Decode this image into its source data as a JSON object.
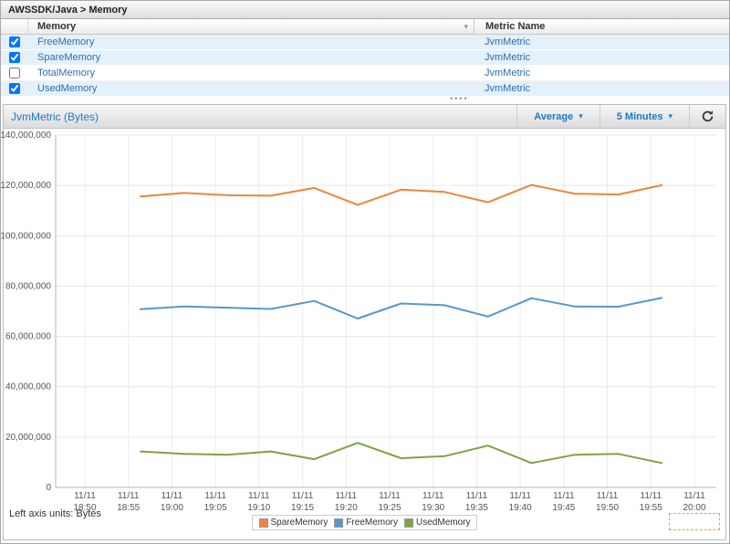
{
  "breadcrumb": "AWSSDK/Java > Memory",
  "table": {
    "columns": {
      "memory": "Memory",
      "metric_name": "Metric Name"
    },
    "sort_indicator": "▾",
    "rows": [
      {
        "name": "FreeMemory",
        "metric": "JvmMetric",
        "checked": true
      },
      {
        "name": "SpareMemory",
        "metric": "JvmMetric",
        "checked": true
      },
      {
        "name": "TotalMemory",
        "metric": "JvmMetric",
        "checked": false
      },
      {
        "name": "UsedMemory",
        "metric": "JvmMetric",
        "checked": true
      }
    ]
  },
  "chart_panel": {
    "title": "JvmMetric (Bytes)",
    "statistic_dropdown": "Average",
    "period_dropdown": "5 Minutes",
    "left_axis_note": "Left axis units: Bytes"
  },
  "chart_data": {
    "type": "line",
    "title": "JvmMetric (Bytes)",
    "unit": "Bytes",
    "ylim": [
      0,
      140000000
    ],
    "grid": true,
    "legend_position": "bottom",
    "y_ticks": [
      "140,000,000",
      "120,000,000",
      "100,000,000",
      "80,000,000",
      "60,000,000",
      "40,000,000",
      "20,000,000",
      "0"
    ],
    "x_tick_date": "11/11",
    "x_tick_times": [
      "18:50",
      "18:55",
      "19:00",
      "19:05",
      "19:10",
      "19:15",
      "19:20",
      "19:25",
      "19:30",
      "19:35",
      "19:40",
      "19:45",
      "19:50",
      "19:55",
      "20:00"
    ],
    "x": [
      "18:56",
      "19:01",
      "19:06",
      "19:11",
      "19:16",
      "19:21",
      "19:26",
      "19:31",
      "19:36",
      "19:41",
      "19:46",
      "19:51",
      "19:56"
    ],
    "series": [
      {
        "name": "SpareMemory",
        "color": "#ef843c",
        "values": [
          115600000,
          117000000,
          116100000,
          115900000,
          119000000,
          112300000,
          118300000,
          117400000,
          113300000,
          120200000,
          116700000,
          116400000,
          120100000
        ]
      },
      {
        "name": "FreeMemory",
        "color": "#5897cf",
        "values": [
          70800000,
          71900000,
          71400000,
          70900000,
          74100000,
          67100000,
          73100000,
          72400000,
          67900000,
          75200000,
          71900000,
          71800000,
          75300000
        ]
      },
      {
        "name": "UsedMemory",
        "color": "#7ea340",
        "values": [
          14300000,
          13300000,
          13000000,
          14300000,
          11200000,
          17700000,
          11600000,
          12400000,
          16600000,
          9700000,
          13000000,
          13300000,
          9700000
        ]
      }
    ]
  },
  "icons": {
    "refresh": "refresh-icon",
    "sort": "sort-descending-icon",
    "chevron": "▾",
    "splitter_dots": "••••"
  }
}
